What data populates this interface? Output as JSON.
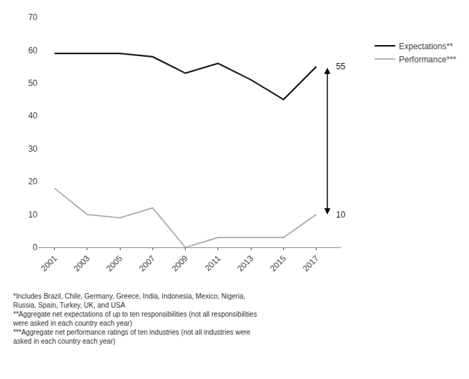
{
  "chart_data": {
    "type": "line",
    "x": [
      2001,
      2003,
      2005,
      2007,
      2009,
      2011,
      2013,
      2015,
      2017
    ],
    "series": [
      {
        "name": "Expectations**",
        "color": "#1a1a1a",
        "values": [
          59,
          59,
          59,
          58,
          53,
          56,
          51,
          45,
          55
        ]
      },
      {
        "name": "Performance***",
        "color": "#aaaaaa",
        "values": [
          18,
          10,
          9,
          12,
          0,
          3,
          3,
          3,
          10
        ]
      }
    ],
    "xlim": [
      2000.0,
      2018.5
    ],
    "xticks": [
      2001,
      2003,
      2005,
      2007,
      2009,
      2011,
      2013,
      2015,
      2017
    ],
    "ylim": [
      0,
      70
    ],
    "yticks": [
      0,
      10,
      20,
      30,
      40,
      50,
      60,
      70
    ],
    "grid": false,
    "annotations": [
      {
        "text": "55",
        "y": 55
      },
      {
        "text": "10",
        "y": 10
      }
    ],
    "footnotes": [
      "*Includes Brazil, Chile, Germany, Greece, India, Indonesia, Mexico, Nigeria,",
      "Russia, Spain, Turkey, UK, and USA",
      "**Aggregate net expectations of up to ten responsibilities (not all responsibilities",
      "were asked in each country each year)",
      "***Aggregate net performance ratings of ten industries (not all industries were",
      "asked in each country each year)"
    ]
  }
}
